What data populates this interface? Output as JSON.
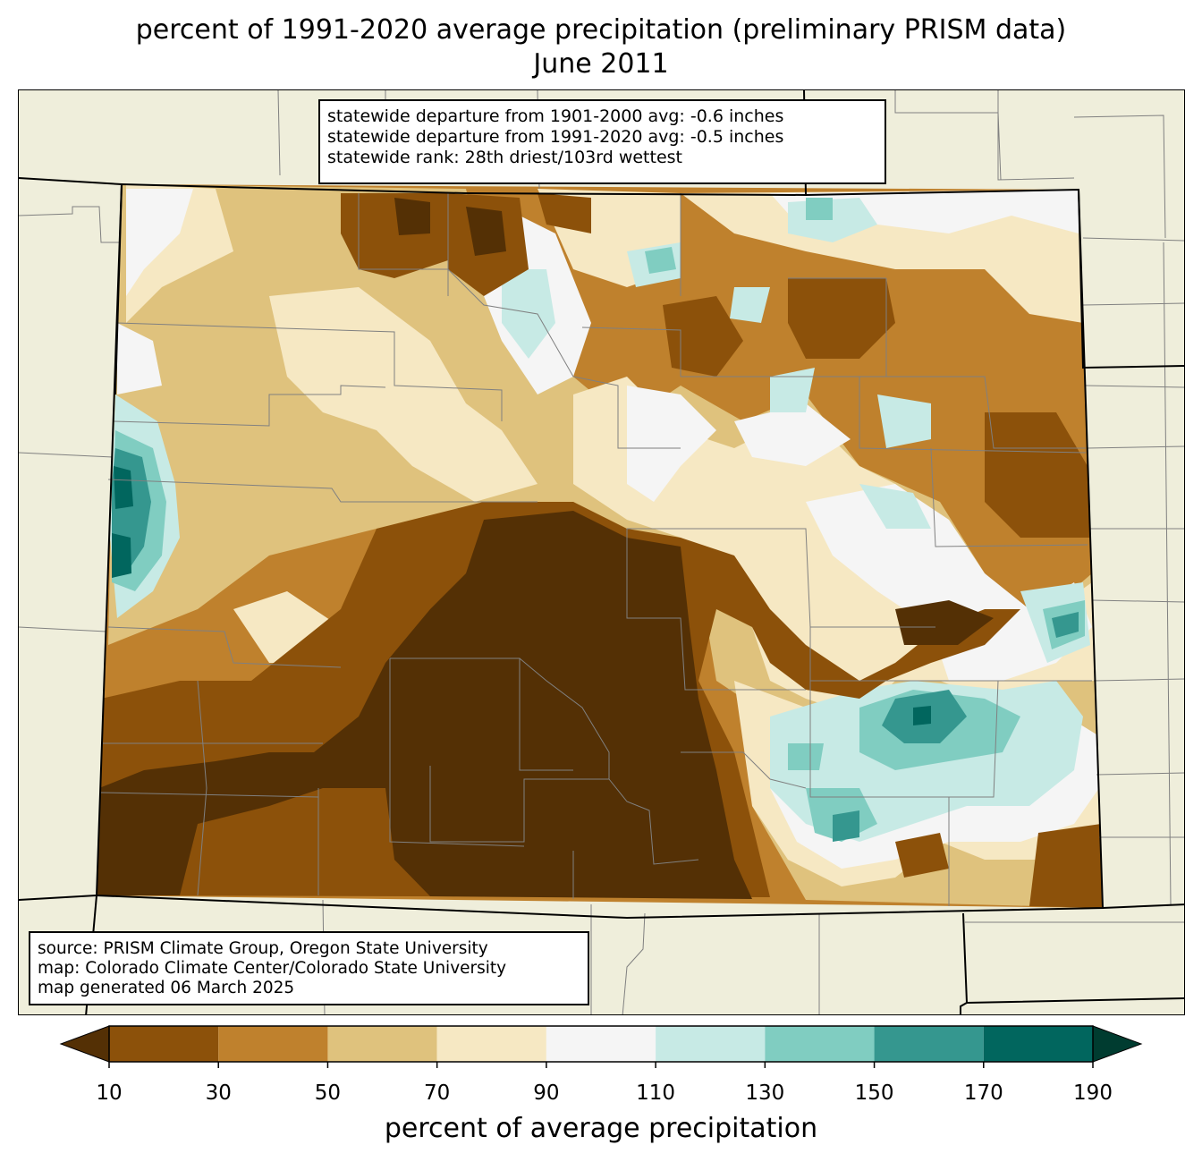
{
  "title": {
    "line1": "percent of 1991-2020 average precipitation (preliminary PRISM data)",
    "line2": "June 2011"
  },
  "stats_box": {
    "line1": "statewide departure from 1901-2000 avg: -0.6 inches",
    "line2": "statewide departure from 1991-2020 avg: -0.5 inches",
    "line3": "statewide rank: 28th driest/103rd wettest"
  },
  "source_box": {
    "line1": "source: PRISM Climate Group, Oregon State University",
    "line2": "map: Colorado Climate Center/Colorado State University",
    "line3": "map generated 06 March 2025"
  },
  "colorbar": {
    "label": "percent of average precipitation",
    "ticks": [
      "10",
      "30",
      "50",
      "70",
      "90",
      "110",
      "130",
      "150",
      "170",
      "190"
    ],
    "colors": [
      "#543005",
      "#8c510a",
      "#bf812d",
      "#dfc27d",
      "#f6e8c3",
      "#f5f5f5",
      "#c7eae5",
      "#80cdc1",
      "#35978f",
      "#01665e",
      "#003c30"
    ],
    "under_color": "#543005",
    "over_color": "#003c30"
  },
  "map": {
    "background_color": "#efeedb",
    "county_line_color": "#808080",
    "state_line_color": "#000000"
  }
}
